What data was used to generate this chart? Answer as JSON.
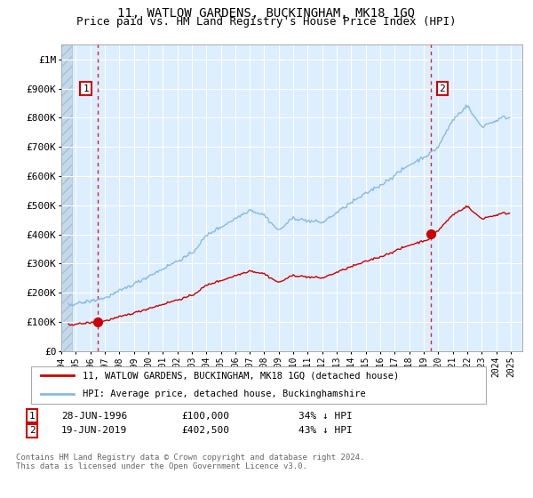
{
  "title": "11, WATLOW GARDENS, BUCKINGHAM, MK18 1GQ",
  "subtitle": "Price paid vs. HM Land Registry's House Price Index (HPI)",
  "title_fontsize": 10,
  "subtitle_fontsize": 9,
  "background_color": "#ffffff",
  "plot_bg_color": "#ddeeff",
  "ylabel": "",
  "ylim": [
    0,
    1050000
  ],
  "yticks": [
    0,
    100000,
    200000,
    300000,
    400000,
    500000,
    600000,
    700000,
    800000,
    900000,
    1000000
  ],
  "ytick_labels": [
    "£0",
    "£100K",
    "£200K",
    "£300K",
    "£400K",
    "£500K",
    "£600K",
    "£700K",
    "£800K",
    "£900K",
    "£1M"
  ],
  "sale1_date_num": 1996.49,
  "sale1_price": 100000,
  "sale1_label": "1",
  "sale2_date_num": 2019.47,
  "sale2_price": 402500,
  "sale2_label": "2",
  "sale_color": "#cc0000",
  "hpi_color": "#88bbdd",
  "vline_color": "#dd0000",
  "legend_line1": "11, WATLOW GARDENS, BUCKINGHAM, MK18 1GQ (detached house)",
  "legend_line2": "HPI: Average price, detached house, Buckinghamshire",
  "footnote": "Contains HM Land Registry data © Crown copyright and database right 2024.\nThis data is licensed under the Open Government Licence v3.0.",
  "xmin": 1994.0,
  "xmax": 2025.8
}
